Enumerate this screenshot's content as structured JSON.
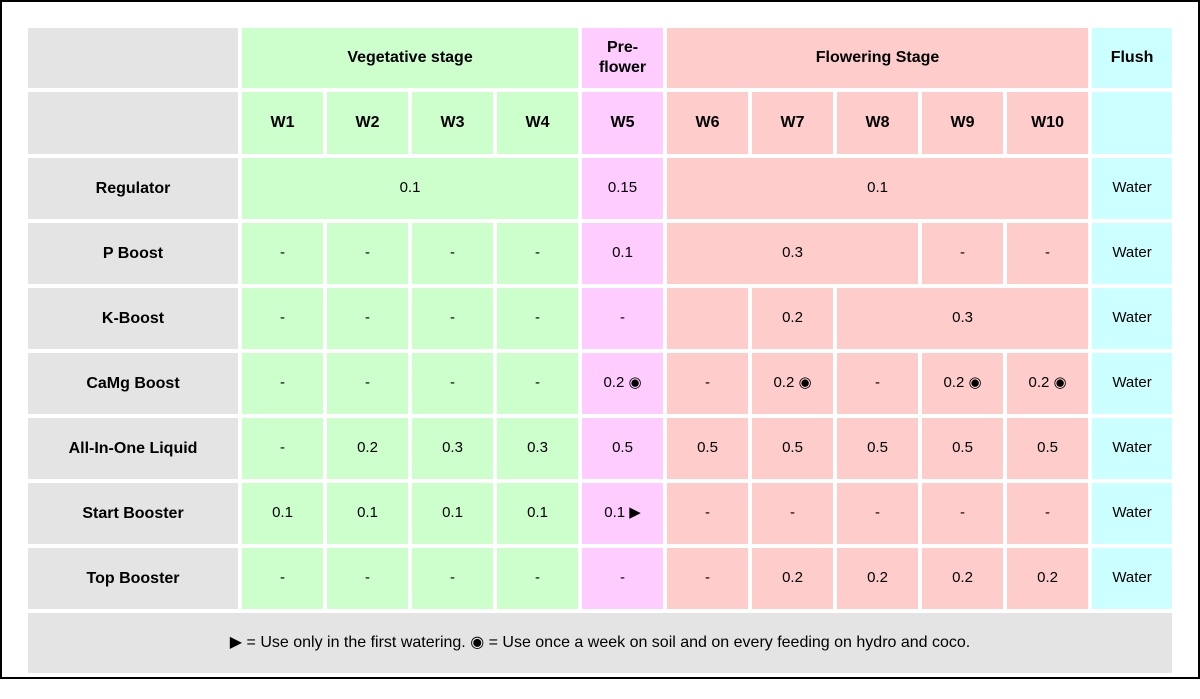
{
  "colors": {
    "label_bg": "#e4e4e4",
    "vegetative_bg": "#ccffcc",
    "preflower_bg": "#ffccff",
    "flowering_bg": "#ffcccc",
    "flush_bg": "#ccffff",
    "gap": "#ffffff",
    "page_border": "#000000",
    "text": "#000000"
  },
  "table": {
    "stage_header": {
      "vegetative": "Vegetative stage",
      "preflower": "Pre-flower",
      "flowering": "Flowering Stage",
      "flush": "Flush"
    },
    "week_header": [
      "W1",
      "W2",
      "W3",
      "W4",
      "W5",
      "W6",
      "W7",
      "W8",
      "W9",
      "W10"
    ],
    "rows": [
      {
        "label": "Regulator",
        "cells": [
          "0.1",
          "0.15",
          "0.1",
          "Water"
        ]
      },
      {
        "label": "P Boost",
        "cells": [
          "-",
          "-",
          "-",
          "-",
          "0.1",
          "0.3",
          "-",
          "-",
          "Water"
        ]
      },
      {
        "label": "K-Boost",
        "cells": [
          "-",
          "-",
          "-",
          "-",
          "-",
          "",
          "0.2",
          "0.3",
          "Water"
        ]
      },
      {
        "label": "CaMg Boost",
        "cells": [
          "-",
          "-",
          "-",
          "-",
          "0.2 ◉",
          "-",
          "0.2 ◉",
          "-",
          "0.2 ◉",
          "0.2 ◉",
          "Water"
        ]
      },
      {
        "label": "All-In-One Liquid",
        "cells": [
          "-",
          "0.2",
          "0.3",
          "0.3",
          "0.5",
          "0.5",
          "0.5",
          "0.5",
          "0.5",
          "0.5",
          "Water"
        ]
      },
      {
        "label": "Start Booster",
        "cells": [
          "0.1",
          "0.1",
          "0.1",
          "0.1",
          "0.1 ▶",
          "-",
          "-",
          "-",
          "-",
          "-",
          "Water"
        ]
      },
      {
        "label": "Top Booster",
        "cells": [
          "-",
          "-",
          "-",
          "-",
          "-",
          "-",
          "0.2",
          "0.2",
          "0.2",
          "0.2",
          "Water"
        ]
      }
    ],
    "footnote": "▶ = Use only in the first watering. ◉ = Use once a week on soil and on every feeding on hydro and coco."
  }
}
